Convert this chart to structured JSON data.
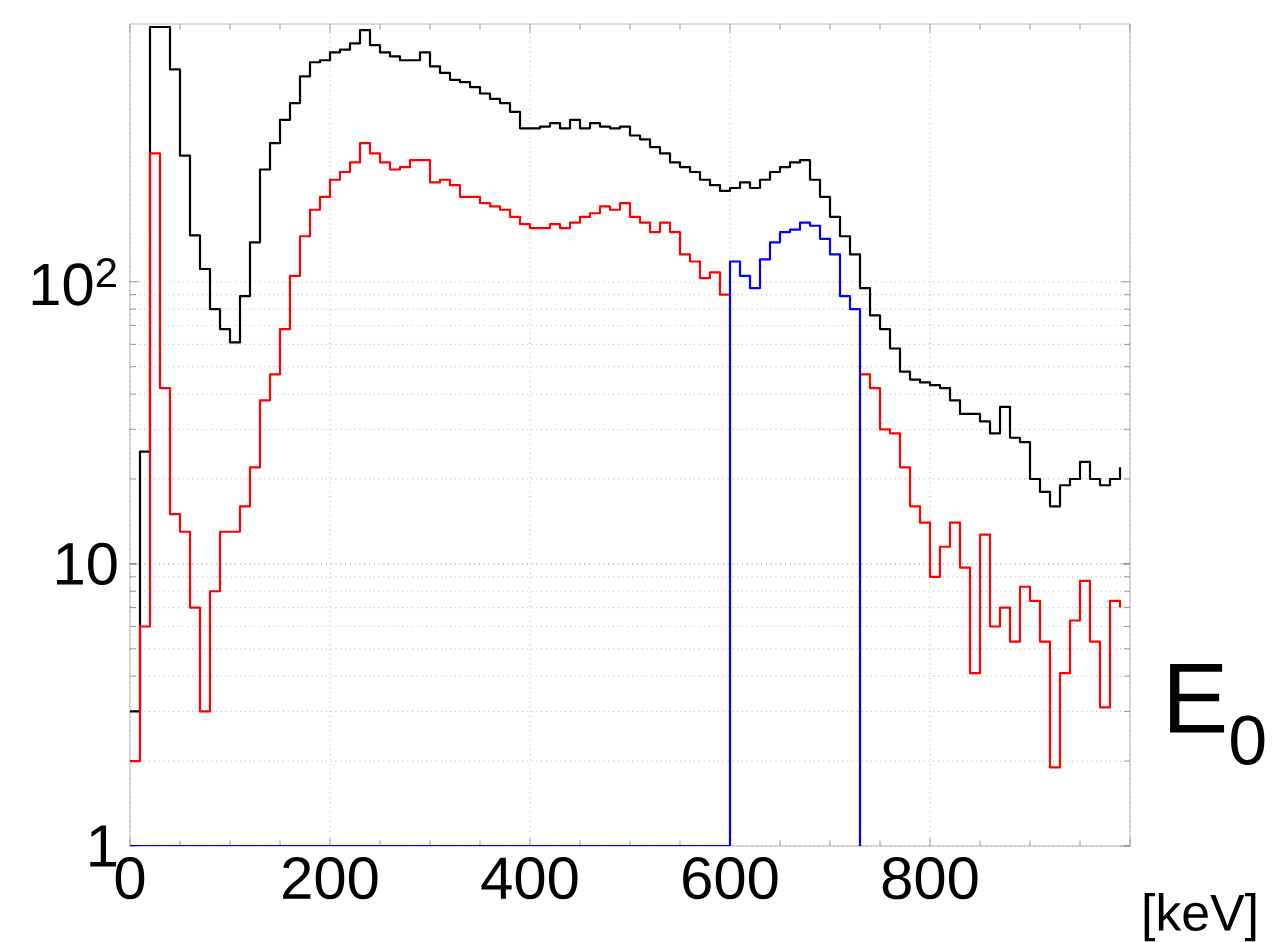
{
  "chart_data": {
    "type": "step",
    "xlabel": "E$_{0}$",
    "annotations": [
      "[keV]"
    ],
    "xlim": [
      0,
      1000
    ],
    "ylim": [
      1,
      820
    ],
    "log": "y",
    "grid": true,
    "xticks": [
      0,
      200,
      400,
      600,
      800,
      {
        "value": 1000,
        "label": null
      }
    ],
    "yticks": [
      1,
      10,
      {
        "value": 100,
        "label": "10$^{2}$"
      }
    ],
    "series": [
      {
        "color": "#000000",
        "x": [
          0,
          10,
          20,
          30,
          40,
          50,
          60,
          70,
          80,
          90,
          100,
          110,
          120,
          130,
          140,
          150,
          160,
          170,
          180,
          190,
          200,
          210,
          220,
          230,
          240,
          250,
          260,
          270,
          280,
          290,
          300,
          310,
          320,
          330,
          340,
          350,
          360,
          370,
          380,
          390,
          400,
          410,
          420,
          430,
          440,
          450,
          460,
          470,
          480,
          490,
          500,
          510,
          520,
          530,
          540,
          550,
          560,
          570,
          580,
          590,
          600,
          610,
          620,
          630,
          640,
          650,
          660,
          670,
          680,
          690,
          700,
          710,
          720,
          730,
          740,
          750,
          760,
          770,
          780,
          790,
          800,
          810,
          820,
          830,
          840,
          850,
          860,
          870,
          880,
          890,
          900,
          910,
          920,
          930,
          940,
          950,
          960,
          970,
          980,
          990
        ],
        "values": [
          3,
          25,
          800,
          800,
          566,
          280,
          146,
          111,
          80,
          68,
          61,
          89,
          138,
          250,
          310,
          375,
          430,
          535,
          600,
          610,
          650,
          665,
          700,
          780,
          690,
          650,
          630,
          610,
          610,
          650,
          580,
          550,
          520,
          510,
          490,
          465,
          445,
          430,
          400,
          350,
          350,
          355,
          365,
          350,
          375,
          350,
          365,
          355,
          350,
          355,
          330,
          320,
          300,
          285,
          265,
          255,
          245,
          230,
          220,
          210,
          215,
          225,
          215,
          230,
          245,
          255,
          265,
          270,
          230,
          200,
          170,
          145,
          125,
          95,
          76,
          68,
          58,
          48,
          45,
          44,
          43,
          42,
          38,
          34,
          34,
          32,
          29,
          36,
          28,
          27,
          20,
          18,
          16,
          19,
          20,
          23,
          20,
          19,
          20,
          22
        ]
      },
      {
        "color": "#ff0000",
        "x": [
          0,
          10,
          20,
          30,
          40,
          50,
          60,
          70,
          80,
          90,
          100,
          110,
          120,
          130,
          140,
          150,
          160,
          170,
          180,
          190,
          200,
          210,
          220,
          230,
          240,
          250,
          260,
          270,
          280,
          290,
          300,
          310,
          320,
          330,
          340,
          350,
          360,
          370,
          380,
          390,
          400,
          410,
          420,
          430,
          440,
          450,
          460,
          470,
          480,
          490,
          500,
          510,
          520,
          530,
          540,
          550,
          560,
          570,
          580,
          590,
          600,
          610,
          620,
          630,
          640,
          650,
          660,
          670,
          680,
          690,
          700,
          710,
          720,
          730,
          740,
          750,
          760,
          770,
          780,
          790,
          800,
          810,
          820,
          830,
          840,
          850,
          860,
          870,
          880,
          890,
          900,
          910,
          920,
          930,
          940,
          950,
          960,
          970,
          980,
          990
        ],
        "values": [
          2,
          6,
          285,
          42,
          15,
          13,
          7,
          3,
          8,
          13,
          13,
          16,
          22,
          38,
          47,
          68,
          105,
          145,
          180,
          200,
          230,
          245,
          265,
          310,
          285,
          265,
          250,
          255,
          270,
          270,
          225,
          230,
          220,
          200,
          200,
          190,
          185,
          180,
          170,
          160,
          155,
          155,
          160,
          155,
          162,
          170,
          175,
          185,
          180,
          190,
          170,
          162,
          150,
          162,
          150,
          125,
          118,
          103,
          108,
          90,
          null,
          null,
          null,
          null,
          null,
          null,
          null,
          null,
          null,
          null,
          null,
          null,
          null,
          47,
          42,
          30,
          29,
          22,
          16,
          14,
          9,
          11.5,
          14,
          9.7,
          4.1,
          12.7,
          6,
          7,
          5.3,
          8.3,
          7.4,
          5.3,
          1.9,
          4.1,
          6.3,
          8.7,
          5.3,
          3.1,
          7.4,
          7
        ]
      },
      {
        "color": "#0000ff",
        "x": [
          0,
          600,
          610,
          620,
          630,
          640,
          650,
          660,
          670,
          680,
          690,
          700,
          710,
          720,
          730
        ],
        "values": [
          1,
          118,
          105,
          95,
          120,
          138,
          150,
          153,
          162,
          158,
          142,
          125,
          89,
          80,
          1
        ]
      }
    ]
  }
}
